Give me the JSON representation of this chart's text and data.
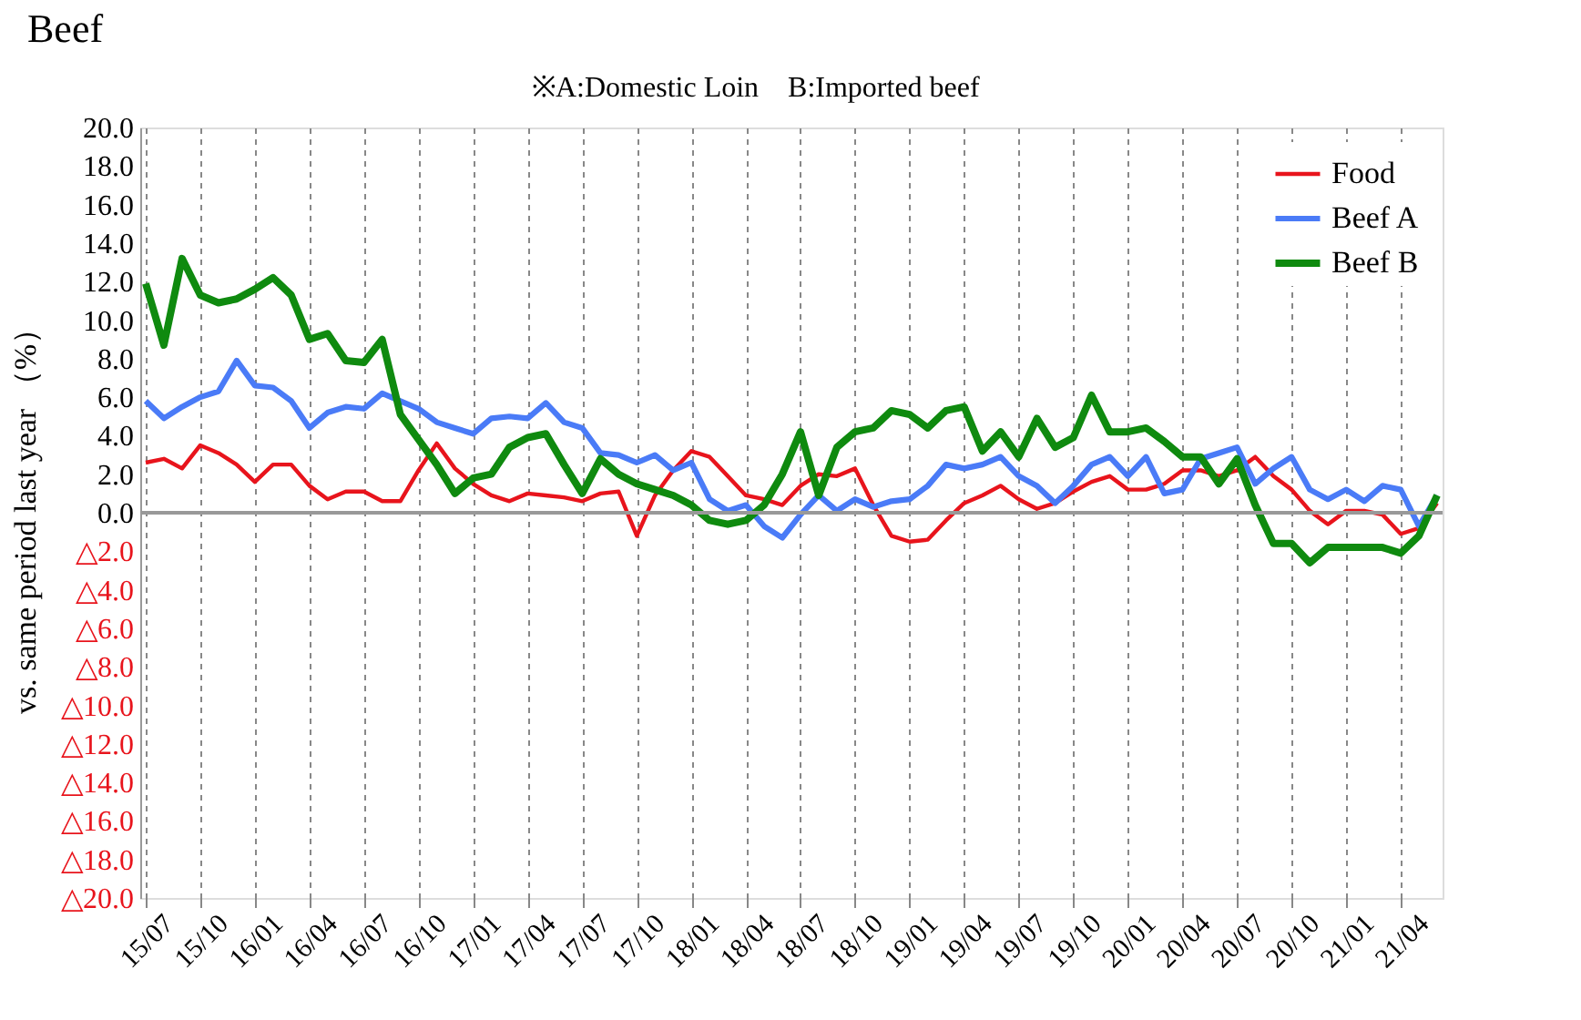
{
  "chart_data": {
    "type": "line",
    "title": "Beef",
    "annotations": [
      "※A:Domestic Loin　B:Imported beef"
    ],
    "ylabel": "vs. same period last year （%）",
    "categories": [
      "15/07",
      null,
      null,
      "15/10",
      null,
      null,
      "16/01",
      null,
      null,
      "16/04",
      null,
      null,
      "16/07",
      null,
      null,
      "16/10",
      null,
      null,
      "17/01",
      null,
      null,
      "17/04",
      null,
      null,
      "17/07",
      null,
      null,
      "17/10",
      null,
      null,
      "18/01",
      null,
      null,
      "18/04",
      null,
      null,
      "18/07",
      null,
      null,
      "18/10",
      null,
      null,
      "19/01",
      null,
      null,
      "19/04",
      null,
      null,
      "19/07",
      null,
      null,
      "19/10",
      null,
      null,
      "20/01",
      null,
      null,
      "20/04",
      null,
      null,
      "20/07",
      null,
      null,
      "20/10",
      null,
      null,
      "21/01",
      null,
      null,
      "21/04",
      null,
      null
    ],
    "series": [
      {
        "name": "Food",
        "color": "#e8141c",
        "values": [
          2.6,
          2.8,
          2.3,
          3.5,
          3.1,
          2.5,
          1.6,
          2.5,
          2.5,
          1.4,
          0.7,
          1.1,
          1.1,
          0.6,
          0.6,
          2.2,
          3.6,
          2.3,
          1.5,
          0.9,
          0.6,
          1.0,
          0.9,
          0.8,
          0.6,
          1.0,
          1.1,
          -1.2,
          0.9,
          2.2,
          3.2,
          2.9,
          1.9,
          0.9,
          0.7,
          0.4,
          1.4,
          2.0,
          1.9,
          2.3,
          0.4,
          -1.2,
          -1.5,
          -1.4,
          -0.4,
          0.5,
          0.9,
          1.4,
          0.7,
          0.2,
          0.5,
          1.1,
          1.6,
          1.9,
          1.2,
          1.2,
          1.5,
          2.2,
          2.2,
          1.9,
          2.2,
          2.9,
          1.9,
          1.2,
          0.1,
          -0.6,
          0.1,
          0.1,
          -0.1,
          -1.1,
          -0.8,
          0.5
        ]
      },
      {
        "name": "Beef A",
        "color": "#4a7bf7",
        "values": [
          5.8,
          4.9,
          5.5,
          6.0,
          6.3,
          7.9,
          6.6,
          6.5,
          5.8,
          4.4,
          5.2,
          5.5,
          5.4,
          6.2,
          5.8,
          5.4,
          4.7,
          4.4,
          4.1,
          4.9,
          5.0,
          4.9,
          5.7,
          4.7,
          4.4,
          3.1,
          3.0,
          2.6,
          3.0,
          2.2,
          2.6,
          0.7,
          0.1,
          0.4,
          -0.7,
          -1.3,
          -0.1,
          0.9,
          0.1,
          0.7,
          0.3,
          0.6,
          0.7,
          1.4,
          2.5,
          2.3,
          2.5,
          2.9,
          1.9,
          1.4,
          0.5,
          1.4,
          2.5,
          2.9,
          1.9,
          2.9,
          1.0,
          1.2,
          2.8,
          3.1,
          3.4,
          1.5,
          2.3,
          2.9,
          1.2,
          0.7,
          1.2,
          0.6,
          1.4,
          1.2,
          -0.7,
          0.9
        ]
      },
      {
        "name": "Beef B",
        "color": "#0f8a0f",
        "values": [
          11.9,
          8.7,
          13.2,
          11.3,
          10.9,
          11.1,
          11.6,
          12.2,
          11.3,
          9.0,
          9.3,
          7.9,
          7.8,
          9.0,
          5.1,
          3.8,
          2.5,
          1.0,
          1.8,
          2.0,
          3.4,
          3.9,
          4.1,
          2.5,
          1.0,
          2.8,
          2.0,
          1.5,
          1.2,
          0.9,
          0.4,
          -0.4,
          -0.6,
          -0.4,
          0.4,
          2.0,
          4.2,
          0.9,
          3.4,
          4.2,
          4.4,
          5.3,
          5.1,
          4.4,
          5.3,
          5.5,
          3.2,
          4.2,
          2.9,
          4.9,
          3.4,
          3.9,
          6.1,
          4.2,
          4.2,
          4.4,
          3.7,
          2.9,
          2.9,
          1.5,
          2.8,
          0.4,
          -1.6,
          -1.6,
          -2.6,
          -1.8,
          -1.8,
          -1.8,
          -1.8,
          -2.1,
          -1.2,
          0.9
        ]
      }
    ],
    "ylim": [
      -20,
      20
    ],
    "yticks": [
      {
        "value": 20,
        "label": "20.0"
      },
      {
        "value": 18,
        "label": "18.0"
      },
      {
        "value": 16,
        "label": "16.0"
      },
      {
        "value": 14,
        "label": "14.0"
      },
      {
        "value": 12,
        "label": "12.0"
      },
      {
        "value": 10,
        "label": "10.0"
      },
      {
        "value": 8,
        "label": "8.0"
      },
      {
        "value": 6,
        "label": "6.0"
      },
      {
        "value": 4,
        "label": "4.0"
      },
      {
        "value": 2,
        "label": "2.0"
      },
      {
        "value": 0,
        "label": "0.0"
      },
      {
        "value": -2,
        "label": "△2.0"
      },
      {
        "value": -4,
        "label": "△4.0"
      },
      {
        "value": -6,
        "label": "△6.0"
      },
      {
        "value": -8,
        "label": "△8.0"
      },
      {
        "value": -10,
        "label": "△10.0"
      },
      {
        "value": -12,
        "label": "△12.0"
      },
      {
        "value": -14,
        "label": "△14.0"
      },
      {
        "value": -16,
        "label": "△16.0"
      },
      {
        "value": -18,
        "label": "△18.0"
      },
      {
        "value": -20,
        "label": "△20.0"
      }
    ],
    "ref_lines": [
      {
        "axis": "y",
        "value": 0,
        "color": "#999999"
      }
    ],
    "grid": "x",
    "legend": "top right",
    "marker": "none",
    "line_style": "solid"
  }
}
